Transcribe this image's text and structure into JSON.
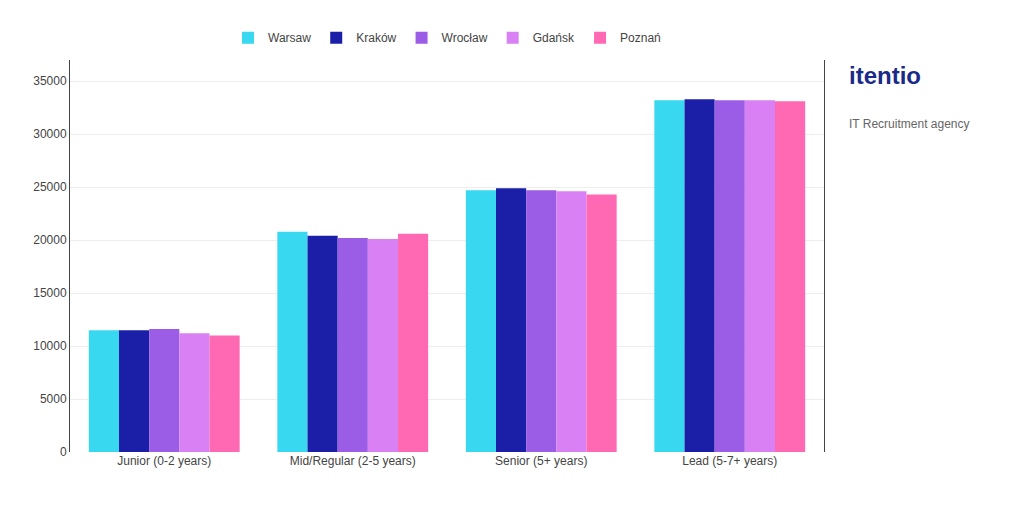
{
  "chart_data": {
    "type": "bar",
    "categories": [
      "Junior (0-2 years)",
      "Mid/Regular (2-5 years)",
      "Senior (5+ years)",
      "Lead (5-7+ years)"
    ],
    "series": [
      {
        "name": "Warsaw",
        "color": "#38D8F0",
        "values": [
          11500,
          20800,
          24700,
          33200
        ]
      },
      {
        "name": "Kraków",
        "color": "#1B1FA8",
        "values": [
          11500,
          20400,
          24900,
          33300
        ]
      },
      {
        "name": "Wrocław",
        "color": "#9B5DE5",
        "values": [
          11600,
          20200,
          24700,
          33200
        ]
      },
      {
        "name": "Gdańsk",
        "color": "#DA80F5",
        "values": [
          11200,
          20100,
          24600,
          33200
        ]
      },
      {
        "name": "Poznań",
        "color": "#FF69B4",
        "values": [
          11000,
          20600,
          24300,
          33100
        ]
      }
    ],
    "ylim": [
      0,
      37000
    ],
    "yticks": [
      0,
      5000,
      10000,
      15000,
      20000,
      25000,
      30000,
      35000
    ],
    "grid": true,
    "legend": "top",
    "annotations": [
      "itentio",
      "IT Recruitment agency"
    ]
  }
}
